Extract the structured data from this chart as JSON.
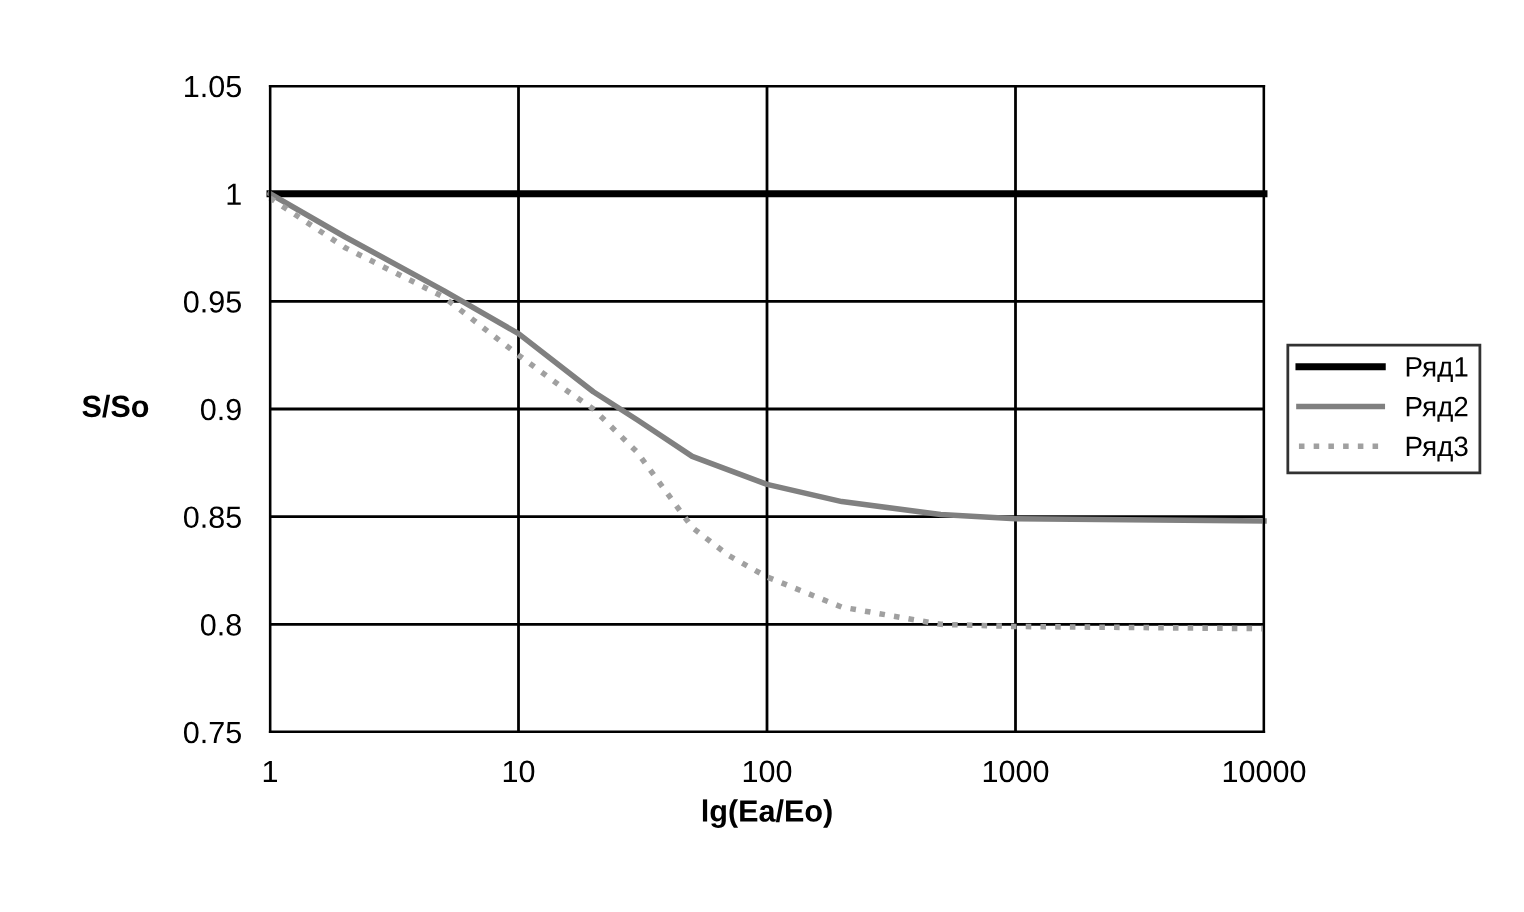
{
  "chart_data": {
    "type": "line",
    "xlabel": "lg(Ea/Eo)",
    "ylabel": "S/So",
    "log": "x",
    "xlim": [
      1,
      10000
    ],
    "xticks": [
      1,
      10,
      100,
      1000,
      10000
    ],
    "ylim": [
      0.75,
      1.05
    ],
    "yticks": [
      0.75,
      0.8,
      0.85,
      0.9,
      0.95,
      1,
      1.05
    ],
    "grid": true,
    "legend": "right",
    "marker": "none",
    "series": [
      {
        "name": "Ряд1",
        "color": "#000000",
        "line_style": "solid",
        "x": [
          1,
          10,
          100,
          1000,
          10000
        ],
        "values": [
          1,
          1,
          1,
          1,
          1
        ]
      },
      {
        "name": "Ряд2",
        "color": "#808080",
        "line_style": "solid",
        "x": [
          1,
          2,
          5,
          10,
          20,
          30,
          50,
          100,
          200,
          500,
          1000,
          10000
        ],
        "values": [
          1.0,
          0.98,
          0.955,
          0.935,
          0.908,
          0.895,
          0.878,
          0.865,
          0.857,
          0.851,
          0.849,
          0.848
        ]
      },
      {
        "name": "Ряд3",
        "color": "#a0a0a0",
        "line_style": "dotted",
        "x": [
          1,
          2,
          5,
          10,
          15,
          20,
          30,
          50,
          70,
          100,
          200,
          500,
          1000,
          10000
        ],
        "values": [
          0.998,
          0.975,
          0.952,
          0.925,
          0.91,
          0.9,
          0.88,
          0.845,
          0.832,
          0.822,
          0.808,
          0.8,
          0.799,
          0.798
        ]
      }
    ]
  }
}
